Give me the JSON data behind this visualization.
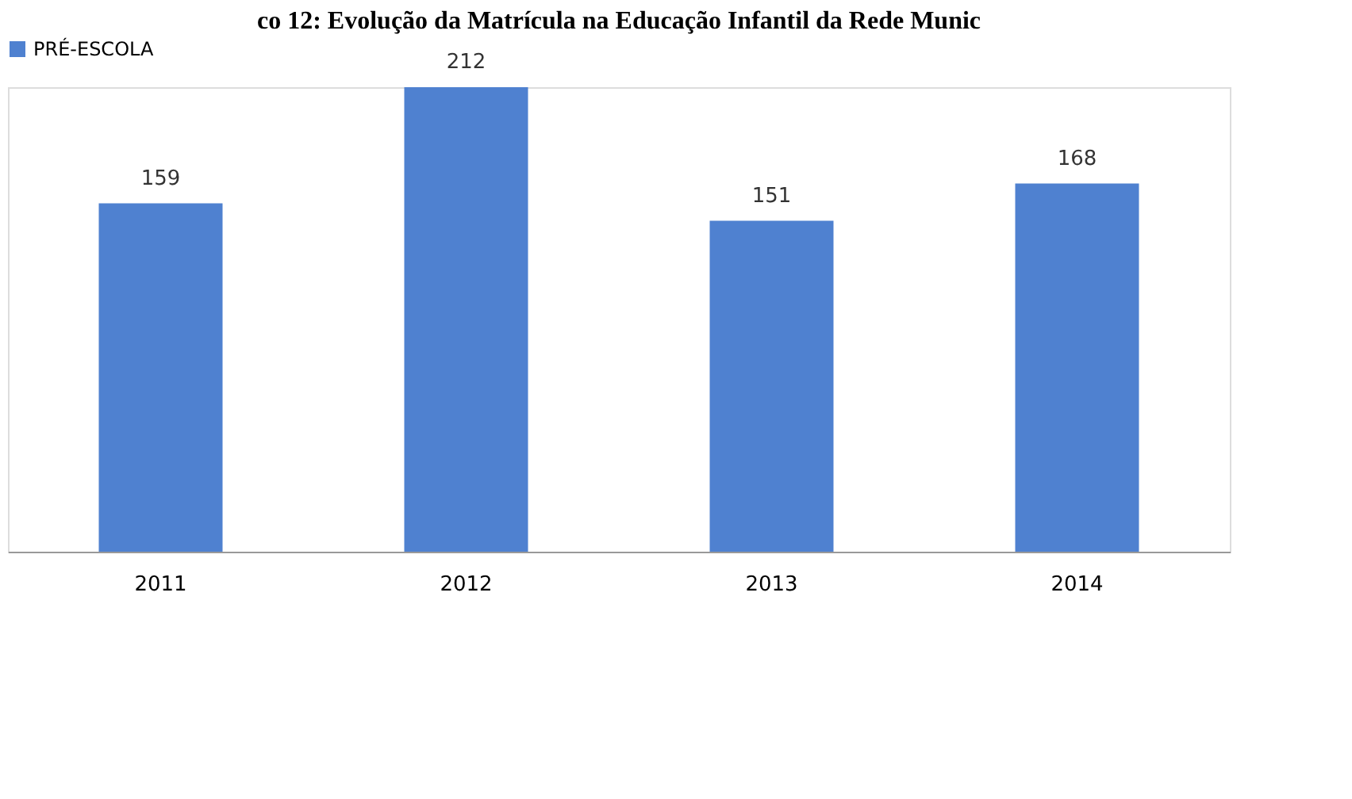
{
  "chart_data": {
    "type": "bar",
    "title": "co 12: Evolução da Matrícula na Educação Infantil da Rede Munic",
    "categories": [
      "2011",
      "2012",
      "2013",
      "2014"
    ],
    "series": [
      {
        "name": "PRÉ-ESCOLA",
        "color": "#4f81d0",
        "values": [
          159,
          212,
          151,
          168
        ]
      }
    ],
    "data_labels": true,
    "legend": "top",
    "grid": false
  }
}
